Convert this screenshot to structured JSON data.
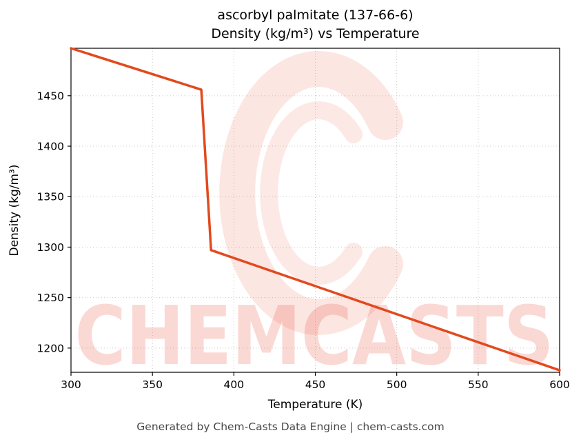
{
  "title": {
    "line1": "ascorbyl palmitate (137-66-6)",
    "line2": "Density (kg/m³) vs Temperature"
  },
  "footer": {
    "text": "Generated by Chem-Casts Data Engine | chem-casts.com"
  },
  "watermark": {
    "text": "CHEMCASTS",
    "color": "#e8543a"
  },
  "chart_data": {
    "type": "line",
    "title": "ascorbyl palmitate (137-66-6) — Density (kg/m³) vs Temperature",
    "xlabel": "Temperature (K)",
    "ylabel": "Density (kg/m³)",
    "series": [
      {
        "name": "density",
        "x": [
          300,
          380,
          386,
          600
        ],
        "y": [
          1497,
          1456,
          1297,
          1178
        ]
      }
    ],
    "xlim": [
      300,
      600
    ],
    "ylim": [
      1176,
      1497
    ],
    "xticks": [
      300,
      350,
      400,
      450,
      500,
      550,
      600
    ],
    "yticks": [
      1200,
      1250,
      1300,
      1350,
      1400,
      1450
    ],
    "grid": true,
    "grid_style": "dotted",
    "legend": false,
    "line_color": "#e2491d",
    "line_width": 3.5,
    "frame_color": "#000000",
    "grid_color": "#c9c9c9"
  }
}
